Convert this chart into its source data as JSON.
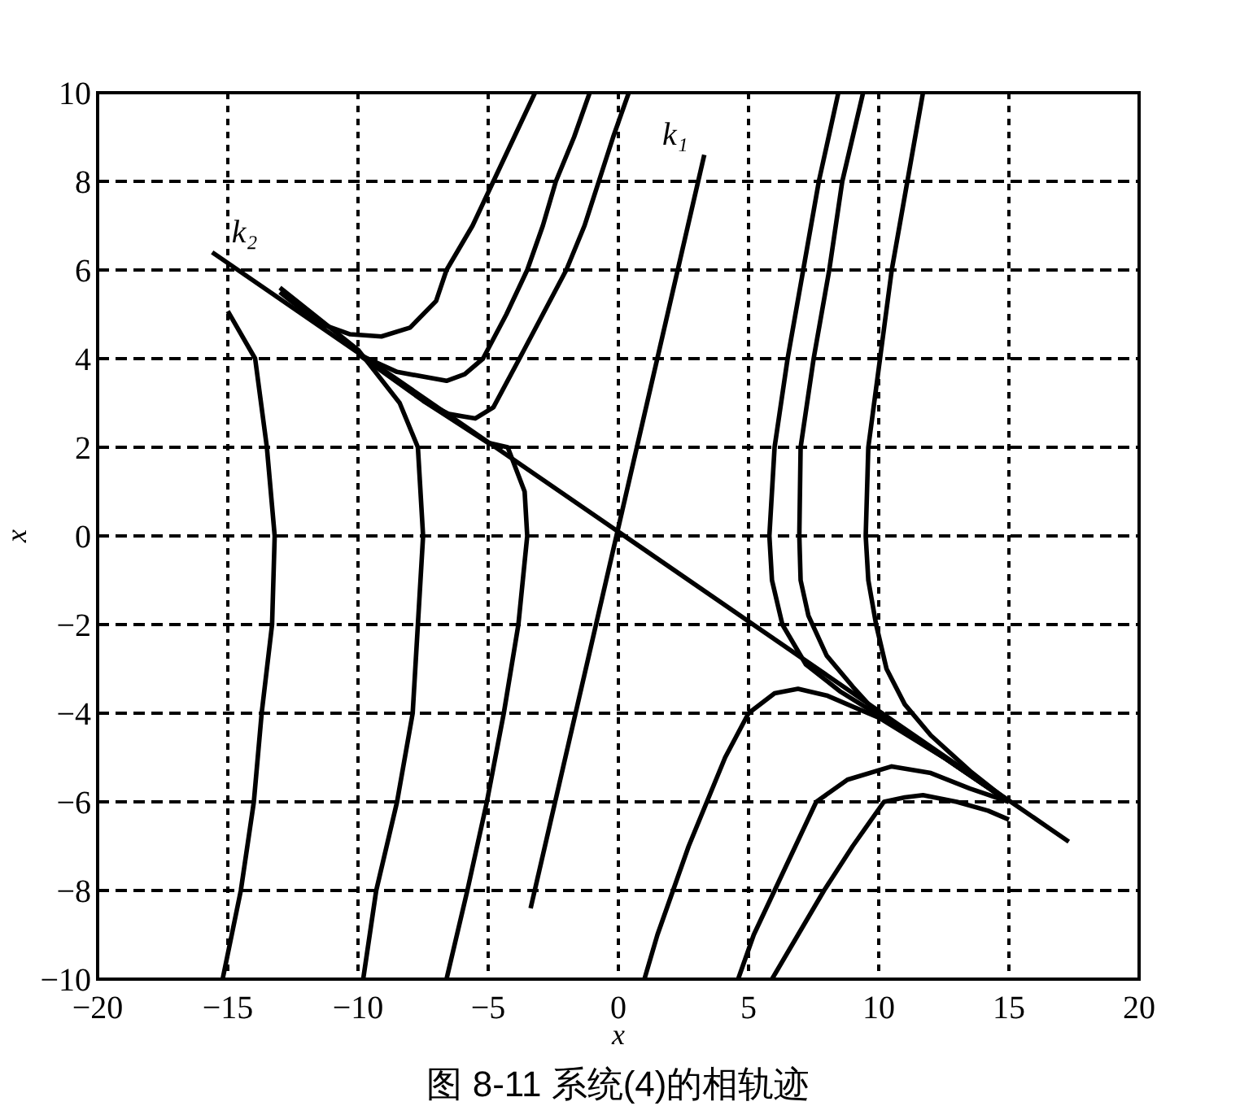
{
  "chart_data": {
    "type": "line",
    "title": "图 8-11 系统(4)的相轨迹",
    "xlabel": "x",
    "ylabel": "x",
    "xlim": [
      -20,
      20
    ],
    "ylim": [
      -10,
      10
    ],
    "xticks": [
      -20,
      -15,
      -10,
      -5,
      0,
      5,
      10,
      15,
      20
    ],
    "yticks": [
      -10,
      -8,
      -6,
      -4,
      -2,
      0,
      2,
      4,
      6,
      8,
      10
    ],
    "grid": true,
    "series": [
      {
        "name": "k₁",
        "color": "#000000",
        "x": [
          3.3,
          -3.37
        ],
        "values": [
          8.6,
          -8.4
        ]
      },
      {
        "name": "k₂",
        "color": "#000000",
        "x": [
          -15.6,
          17.3
        ],
        "values": [
          6.4,
          -6.9
        ]
      },
      {
        "color": "#000000",
        "x": [
          -15,
          -13.95,
          -13.5,
          -13.2,
          -13.3,
          -13.7,
          -14.0,
          -14.5,
          -15.2
        ],
        "values": [
          5.07,
          4,
          2,
          0,
          -2,
          -4,
          -6,
          -8,
          -10
        ]
      },
      {
        "color": "#000000",
        "x": [
          -13,
          -10,
          -8.4,
          -7.7,
          -7.5,
          -7.7,
          -7.9,
          -8.5,
          -9.3,
          -9.8
        ],
        "values": [
          5.6,
          4.2,
          3,
          2,
          0,
          -2,
          -4,
          -6,
          -8,
          -10
        ]
      },
      {
        "color": "#000000",
        "x": [
          -10,
          -7.5,
          -5,
          -4.25,
          -3.6,
          -3.5,
          -3.84,
          -4.4,
          -5.05,
          -5.8,
          -6.6
        ],
        "values": [
          4.1,
          3.05,
          2.1,
          2,
          1,
          0,
          -2,
          -4,
          -6,
          -8,
          -10
        ]
      },
      {
        "color": "#000000",
        "x": [
          -13,
          -11.5,
          -10.3,
          -9.1,
          -8,
          -7,
          -6.6,
          -5.6,
          -4.8,
          -4,
          -3.2
        ],
        "values": [
          5.5,
          4.8,
          4.55,
          4.5,
          4.7,
          5.3,
          6,
          7,
          8,
          9,
          10
        ]
      },
      {
        "color": "#000000",
        "x": [
          -10,
          -8.5,
          -6.6,
          -5.9,
          -5.2,
          -4.3,
          -3.5,
          -2.9,
          -2.4,
          -1.7,
          -1.1
        ],
        "values": [
          4.1,
          3.7,
          3.5,
          3.65,
          4,
          5,
          6,
          7,
          8,
          9,
          10
        ]
      },
      {
        "color": "#000000",
        "x": [
          -7.5,
          -6.5,
          -5.5,
          -4.8,
          -3.8,
          -2.9,
          -2,
          -1.3,
          -0.75,
          -0.2,
          0.4
        ],
        "values": [
          3.05,
          2.75,
          2.65,
          2.9,
          4,
          5,
          6,
          7,
          8,
          9,
          10
        ]
      },
      {
        "color": "#000000",
        "x": [
          15,
          12.5,
          10,
          8.5,
          7.2,
          6.3,
          5.9,
          5.8,
          6,
          6.5,
          7.1,
          7.7,
          8.45
        ],
        "values": [
          -6,
          -5,
          -4.05,
          -3.5,
          -2.9,
          -2,
          -1,
          0,
          2,
          4,
          6,
          8,
          10
        ]
      },
      {
        "color": "#000000",
        "x": [
          15,
          12.5,
          10,
          9,
          8,
          7.3,
          7,
          6.95,
          7,
          7.5,
          8.1,
          8.6,
          9.4
        ],
        "values": [
          -6,
          -5,
          -4.05,
          -3.4,
          -2.7,
          -1.8,
          -1,
          0,
          2,
          4,
          6,
          8,
          10
        ]
      },
      {
        "color": "#000000",
        "x": [
          15,
          13.5,
          12,
          11,
          10.3,
          9.9,
          9.6,
          9.5,
          9.6,
          10.05,
          10.5,
          11.1,
          11.7
        ],
        "values": [
          -6,
          -5.3,
          -4.5,
          -3.8,
          -3,
          -2,
          -1,
          0,
          2,
          4,
          6,
          8,
          10
        ]
      },
      {
        "color": "#000000",
        "x": [
          1,
          1.5,
          2.1,
          2.7,
          3.4,
          4.1,
          5,
          6,
          6.9,
          8,
          9,
          10,
          12.5,
          15
        ],
        "values": [
          -10,
          -9,
          -8,
          -7,
          -6,
          -5,
          -4,
          -3.55,
          -3.45,
          -3.6,
          -3.85,
          -4.1,
          -5,
          -6
        ]
      },
      {
        "color": "#000000",
        "x": [
          4.6,
          5.2,
          6,
          6.8,
          7.6,
          8.8,
          10.5,
          12,
          13.5,
          15
        ],
        "values": [
          -10,
          -9,
          -8,
          -7,
          -6,
          -5.5,
          -5.2,
          -5.35,
          -5.7,
          -6
        ]
      },
      {
        "color": "#000000",
        "x": [
          5.9,
          6.9,
          7.9,
          9,
          10.2,
          11,
          11.7,
          13,
          14.2,
          15
        ],
        "values": [
          -10,
          -9,
          -8,
          -7,
          -6,
          -5.9,
          -5.85,
          -6,
          -6.2,
          -6.4
        ]
      }
    ]
  }
}
